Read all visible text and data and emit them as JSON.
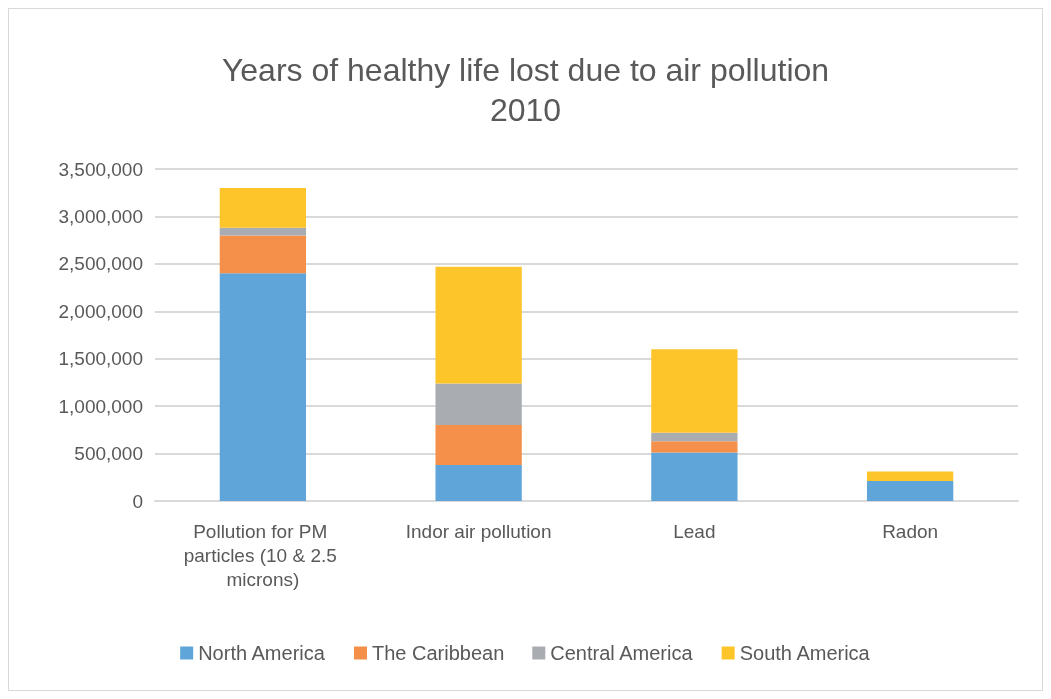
{
  "chart_data": {
    "type": "bar",
    "title": "Years of healthy life lost due to air pollution\n2010",
    "categories": [
      "Pollution for PM particles (10 & 2.5 microns)",
      "Indor air pollution",
      "Lead",
      "Radon"
    ],
    "stacked": true,
    "ylim": [
      0,
      3500000
    ],
    "yticks": [
      0,
      {
        "value": 500000,
        "label": "500,000"
      },
      {
        "value": 1000000,
        "label": "1,000,000"
      },
      {
        "value": 1500000,
        "label": "1,500,000"
      },
      {
        "value": 2000000,
        "label": "2,000,000"
      },
      {
        "value": 2500000,
        "label": "2,500,000"
      },
      {
        "value": 3000000,
        "label": "3,000,000"
      },
      {
        "value": 3500000,
        "label": "3,500,000"
      }
    ],
    "grid": "y",
    "legend": "bottom",
    "series": [
      {
        "name": "North America",
        "color": "#5fa5d9",
        "values": [
          2400000,
          380000,
          510000,
          210000
        ]
      },
      {
        "name": "The Caribbean",
        "color": "#f5904a",
        "values": [
          400000,
          420000,
          120000,
          0
        ]
      },
      {
        "name": "Central America",
        "color": "#a9acb0",
        "values": [
          80000,
          440000,
          90000,
          0
        ]
      },
      {
        "name": "South America",
        "color": "#fec52a",
        "values": [
          420000,
          1230000,
          880000,
          100000
        ]
      }
    ]
  }
}
